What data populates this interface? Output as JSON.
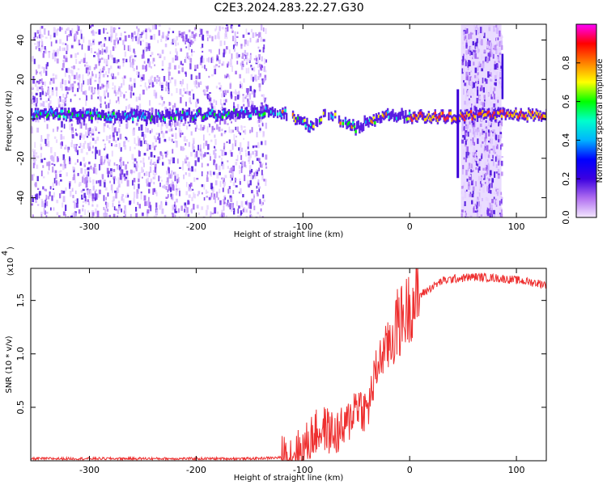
{
  "title": "C2E3.2024.283.22.27.G30",
  "chart_data": [
    {
      "type": "heatmap",
      "xlabel": "Height of straight line (km)",
      "ylabel": "Frequency (Hz)",
      "xlim": [
        -355,
        128
      ],
      "ylim": [
        -50,
        48
      ],
      "xticks": [
        -300,
        -200,
        -100,
        0,
        100
      ],
      "yticks": [
        -40,
        -20,
        0,
        20,
        40
      ],
      "colorbar": {
        "label": "Normalized spectral amplitude",
        "range": [
          0.0,
          1.0
        ],
        "ticks": [
          "0.0",
          "0.2",
          "0.4",
          "0.6",
          "0.8"
        ],
        "colors": [
          "#f4e8ff",
          "#b06ef0",
          "#3c00e0",
          "#0000ff",
          "#00b4ff",
          "#00ffcc",
          "#00ff00",
          "#ffff00",
          "#ff8000",
          "#ff0000",
          "#ff00ff"
        ]
      },
      "ridge": {
        "x": [
          -350,
          -300,
          -250,
          -200,
          -150,
          -130,
          -120,
          -110,
          -100,
          -90,
          -80,
          -70,
          -60,
          -50,
          -45,
          -40,
          -30,
          -20,
          -10,
          0,
          20,
          40,
          45,
          60,
          80,
          90,
          100,
          128
        ],
        "y": [
          3,
          2,
          1,
          2,
          3,
          4,
          3,
          1,
          -2,
          -4,
          3,
          1,
          -2,
          -5,
          -3,
          -1,
          0,
          2,
          2,
          1,
          1,
          1,
          1,
          2,
          2,
          2,
          2,
          2
        ]
      }
    },
    {
      "type": "line",
      "xlabel": "Height of straight line (km)",
      "ylabel": "SNR (10 * v/v)",
      "scale_label": "(x10",
      "scale_exp": "4",
      "xlim": [
        -355,
        128
      ],
      "ylim": [
        0,
        1.8
      ],
      "xticks": [
        -300,
        -200,
        -100,
        0,
        100
      ],
      "yticks": [
        "0.5",
        "1.0",
        "1.5"
      ],
      "series": [
        {
          "color": "#ee3030",
          "x": [
            -355,
            -300,
            -250,
            -200,
            -150,
            -120,
            -100,
            -90,
            -80,
            -70,
            -60,
            -50,
            -40,
            -30,
            -25,
            -20,
            -15,
            -10,
            -5,
            0,
            10,
            20,
            30,
            40,
            60,
            80,
            100,
            128
          ],
          "y": [
            0.02,
            0.02,
            0.02,
            0.02,
            0.02,
            0.03,
            0.1,
            0.25,
            0.3,
            0.25,
            0.3,
            0.55,
            0.45,
            0.9,
            1.0,
            1.1,
            1.2,
            1.3,
            1.35,
            1.45,
            1.55,
            1.62,
            1.68,
            1.7,
            1.72,
            1.71,
            1.69,
            1.65
          ]
        }
      ]
    }
  ]
}
